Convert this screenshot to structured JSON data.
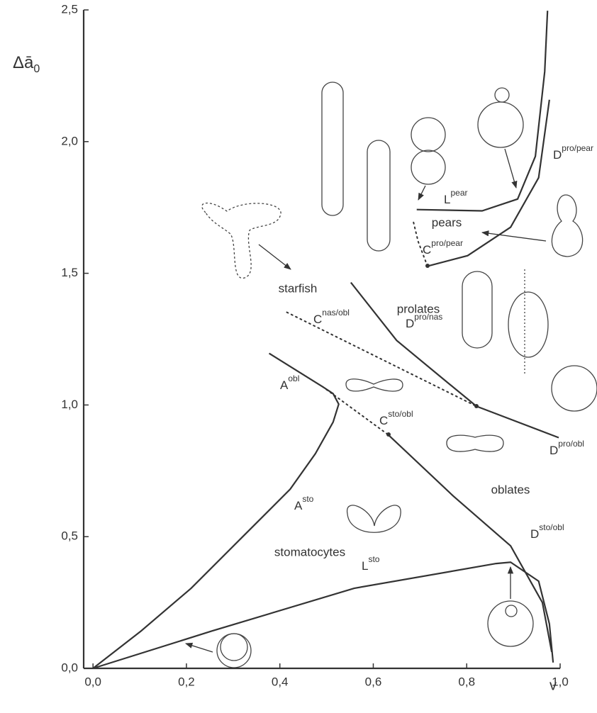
{
  "chart_data": {
    "type": "line",
    "xlabel": "v",
    "ylabel": "Δā",
    "ylabel_sub": "0",
    "xlim": [
      -0.02,
      1.0
    ],
    "ylim": [
      0,
      2.5
    ],
    "xticks": [
      {
        "value": 0,
        "label": "0,0"
      },
      {
        "value": 0.2,
        "label": "0,2"
      },
      {
        "value": 0.4,
        "label": "0,4"
      },
      {
        "value": 0.6,
        "label": "0,6"
      },
      {
        "value": 0.8,
        "label": "0,8"
      },
      {
        "value": 1.0,
        "label": "1,0"
      }
    ],
    "yticks": [
      {
        "value": 0,
        "label": "0,0"
      },
      {
        "value": 0.5,
        "label": "0,5"
      },
      {
        "value": 1.0,
        "label": "1,0"
      },
      {
        "value": 1.5,
        "label": "1,5"
      },
      {
        "value": 2.0,
        "label": "2,0"
      },
      {
        "value": 2.5,
        "label": "2,5"
      }
    ],
    "series": [
      {
        "name": "A",
        "sup": "sto",
        "color": "#333333",
        "linestyle": "solid",
        "x": [
          0,
          0.103,
          0.21,
          0.316,
          0.422,
          0.476,
          0.514,
          0.526,
          0.514,
          0.491
        ],
        "values": [
          0,
          0.142,
          0.304,
          0.492,
          0.68,
          0.815,
          0.935,
          1.003,
          1.043,
          1.07
        ]
      },
      {
        "name": "A",
        "sup": "obl",
        "color": "#333333",
        "linestyle": "solid",
        "x": [
          0.491,
          0.377
        ],
        "values": [
          1.07,
          1.196
        ]
      },
      {
        "name": "L",
        "sup": "sto",
        "color": "#333333",
        "linestyle": "solid",
        "x": [
          0,
          0.255,
          0.559,
          0.863,
          0.894,
          0.954,
          0.977,
          0.985
        ],
        "values": [
          0,
          0.142,
          0.304,
          0.398,
          0.403,
          0.331,
          0.169,
          0.022
        ]
      },
      {
        "name": "D",
        "sup": "sto/obl",
        "color": "#333333",
        "linestyle": "solid",
        "x": [
          0.632,
          0.772,
          0.894,
          0.962,
          0.982
        ],
        "values": [
          0.887,
          0.653,
          0.465,
          0.25,
          0.062
        ]
      },
      {
        "name": "C",
        "sup": "sto/obl",
        "color": "#333333",
        "linestyle": "dotted",
        "x": [
          0.491,
          0.632
        ],
        "values": [
          1.07,
          0.887
        ]
      },
      {
        "name": "C",
        "sup": "nas/obl",
        "color": "#333333",
        "linestyle": "dotted",
        "x": [
          0.415,
          0.821
        ],
        "values": [
          1.352,
          0.995
        ]
      },
      {
        "name": "D",
        "sup": "pro/nas",
        "color": "#333333",
        "linestyle": "solid",
        "x": [
          0.552,
          0.65,
          0.742,
          0.821
        ],
        "values": [
          1.465,
          1.245,
          1.11,
          0.995
        ]
      },
      {
        "name": "D",
        "sup": "pro/obl",
        "color": "#333333",
        "linestyle": "solid",
        "x": [
          0.821,
          0.997
        ],
        "values": [
          0.995,
          0.876
        ]
      },
      {
        "name": "D",
        "sup": "pro/pear",
        "color": "#333333",
        "linestyle": "solid",
        "x": [
          0.716,
          0.802,
          0.894,
          0.954,
          0.977
        ],
        "values": [
          1.527,
          1.567,
          1.675,
          1.863,
          2.159
        ]
      },
      {
        "name": "L",
        "sup": "pear",
        "color": "#333333",
        "linestyle": "solid",
        "x": [
          0.693,
          0.833,
          0.909,
          0.947,
          0.967,
          0.973
        ],
        "values": [
          1.742,
          1.737,
          1.782,
          1.944,
          2.266,
          2.497
        ]
      },
      {
        "name": "C",
        "sup": "pro/pear",
        "color": "#333333",
        "linestyle": "dotted",
        "x": [
          0.716,
          0.696,
          0.685
        ],
        "values": [
          1.527,
          1.621,
          1.702
        ]
      }
    ],
    "regions": [
      "starfish",
      "prolates",
      "pears",
      "oblates",
      "stomatocytes"
    ]
  }
}
